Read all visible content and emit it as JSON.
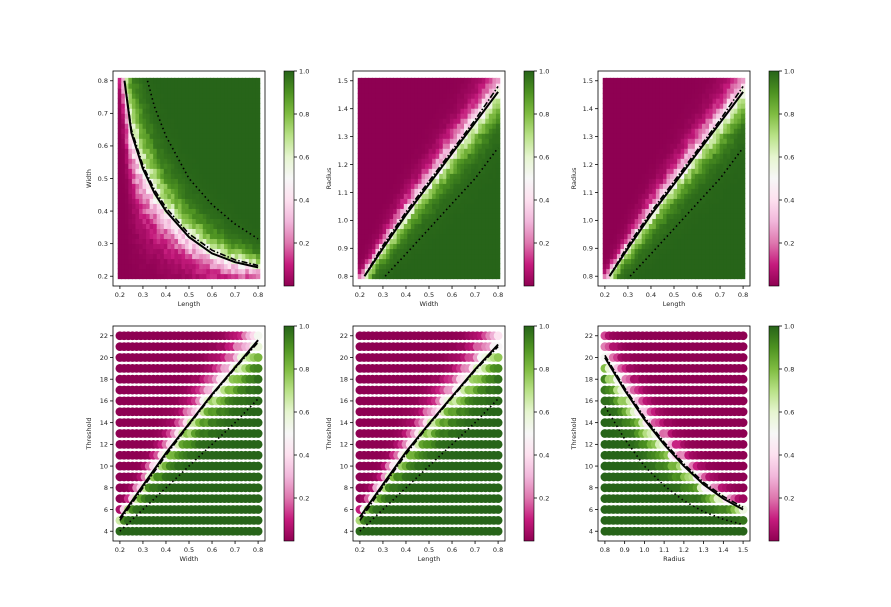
{
  "colorbar": {
    "ticks": [
      "0.2",
      "0.4",
      "0.6",
      "0.8",
      "1.0"
    ],
    "tick_values": [
      0.2,
      0.4,
      0.6,
      0.8,
      1.0
    ],
    "colors_low_to_high": [
      "#8e0152",
      "#c51b7d",
      "#de77ae",
      "#f1b6da",
      "#fde0ef",
      "#f7f7f7",
      "#e6f5d0",
      "#b8e186",
      "#7fbc41",
      "#4d9221",
      "#276419"
    ]
  },
  "chart_data": [
    {
      "type": "heatmap",
      "xlabel": "Length",
      "ylabel": "Width",
      "xlim": [
        0.17,
        0.83
      ],
      "ylim": [
        0.17,
        0.83
      ],
      "xticks": [
        0.2,
        0.3,
        0.4,
        0.5,
        0.6,
        0.7,
        0.8
      ],
      "xtick_labels": [
        "0.2",
        "0.3",
        "0.4",
        "0.5",
        "0.6",
        "0.7",
        "0.8"
      ],
      "yticks": [
        0.2,
        0.3,
        0.4,
        0.5,
        0.6,
        0.7,
        0.8
      ],
      "ytick_labels": [
        "0.2",
        "0.3",
        "0.4",
        "0.5",
        "0.6",
        "0.7",
        "0.8"
      ],
      "x_range": [
        0.2,
        0.8
      ],
      "y_range": [
        0.2,
        0.8
      ],
      "color_range": [
        0,
        1
      ],
      "boundary_solid": [
        [
          0.22,
          0.8
        ],
        [
          0.25,
          0.64
        ],
        [
          0.3,
          0.53
        ],
        [
          0.35,
          0.455
        ],
        [
          0.4,
          0.4
        ],
        [
          0.5,
          0.32
        ],
        [
          0.6,
          0.27
        ],
        [
          0.7,
          0.243
        ],
        [
          0.8,
          0.227
        ]
      ],
      "boundary_dashdot": [
        [
          0.22,
          0.8
        ],
        [
          0.25,
          0.65
        ],
        [
          0.3,
          0.54
        ],
        [
          0.35,
          0.465
        ],
        [
          0.4,
          0.41
        ],
        [
          0.5,
          0.33
        ],
        [
          0.6,
          0.28
        ],
        [
          0.7,
          0.25
        ],
        [
          0.8,
          0.233
        ]
      ],
      "boundary_dotted": [
        [
          0.32,
          0.8
        ],
        [
          0.35,
          0.72
        ],
        [
          0.4,
          0.63
        ],
        [
          0.5,
          0.5
        ],
        [
          0.6,
          0.42
        ],
        [
          0.7,
          0.36
        ],
        [
          0.8,
          0.315
        ]
      ],
      "green_side": "upper-right"
    },
    {
      "type": "heatmap",
      "xlabel": "Width",
      "ylabel": "Radius",
      "xlim": [
        0.17,
        0.83
      ],
      "ylim": [
        0.765,
        1.535
      ],
      "xticks": [
        0.2,
        0.3,
        0.4,
        0.5,
        0.6,
        0.7,
        0.8
      ],
      "xtick_labels": [
        "0.2",
        "0.3",
        "0.4",
        "0.5",
        "0.6",
        "0.7",
        "0.8"
      ],
      "yticks": [
        0.8,
        0.9,
        1.0,
        1.1,
        1.2,
        1.3,
        1.4,
        1.5
      ],
      "ytick_labels": [
        "0.8",
        "0.9",
        "1.0",
        "1.1",
        "1.2",
        "1.3",
        "1.4",
        "1.5"
      ],
      "x_range": [
        0.2,
        0.8
      ],
      "y_range": [
        0.8,
        1.5
      ],
      "color_range": [
        0,
        1
      ],
      "boundary_solid": [
        [
          0.22,
          0.8
        ],
        [
          0.3,
          0.9
        ],
        [
          0.4,
          1.02
        ],
        [
          0.5,
          1.13
        ],
        [
          0.6,
          1.24
        ],
        [
          0.7,
          1.35
        ],
        [
          0.8,
          1.46
        ]
      ],
      "boundary_dashdot": [
        [
          0.22,
          0.8
        ],
        [
          0.3,
          0.91
        ],
        [
          0.4,
          1.03
        ],
        [
          0.5,
          1.14
        ],
        [
          0.6,
          1.25
        ],
        [
          0.7,
          1.36
        ],
        [
          0.8,
          1.48
        ]
      ],
      "boundary_dotted": [
        [
          0.31,
          0.8
        ],
        [
          0.4,
          0.88
        ],
        [
          0.5,
          0.97
        ],
        [
          0.6,
          1.06
        ],
        [
          0.7,
          1.15
        ],
        [
          0.8,
          1.26
        ]
      ],
      "green_side": "lower-right"
    },
    {
      "type": "heatmap",
      "xlabel": "Length",
      "ylabel": "Radius",
      "xlim": [
        0.17,
        0.83
      ],
      "ylim": [
        0.765,
        1.535
      ],
      "xticks": [
        0.2,
        0.3,
        0.4,
        0.5,
        0.6,
        0.7,
        0.8
      ],
      "xtick_labels": [
        "0.2",
        "0.3",
        "0.4",
        "0.5",
        "0.6",
        "0.7",
        "0.8"
      ],
      "yticks": [
        0.8,
        0.9,
        1.0,
        1.1,
        1.2,
        1.3,
        1.4,
        1.5
      ],
      "ytick_labels": [
        "0.8",
        "0.9",
        "1.0",
        "1.1",
        "1.2",
        "1.3",
        "1.4",
        "1.5"
      ],
      "x_range": [
        0.2,
        0.8
      ],
      "y_range": [
        0.8,
        1.5
      ],
      "color_range": [
        0,
        1
      ],
      "boundary_solid": [
        [
          0.22,
          0.8
        ],
        [
          0.3,
          0.9
        ],
        [
          0.4,
          1.02
        ],
        [
          0.5,
          1.13
        ],
        [
          0.6,
          1.24
        ],
        [
          0.7,
          1.35
        ],
        [
          0.8,
          1.46
        ]
      ],
      "boundary_dashdot": [
        [
          0.22,
          0.8
        ],
        [
          0.3,
          0.91
        ],
        [
          0.4,
          1.03
        ],
        [
          0.5,
          1.14
        ],
        [
          0.6,
          1.25
        ],
        [
          0.7,
          1.36
        ],
        [
          0.8,
          1.48
        ]
      ],
      "boundary_dotted": [
        [
          0.31,
          0.8
        ],
        [
          0.4,
          0.88
        ],
        [
          0.5,
          0.97
        ],
        [
          0.6,
          1.06
        ],
        [
          0.7,
          1.15
        ],
        [
          0.8,
          1.26
        ]
      ],
      "green_side": "lower-right"
    },
    {
      "type": "scatter",
      "xlabel": "Width",
      "ylabel": "Threshold",
      "xlim": [
        0.17,
        0.83
      ],
      "ylim": [
        3.1,
        22.9
      ],
      "xticks": [
        0.2,
        0.3,
        0.4,
        0.5,
        0.6,
        0.7,
        0.8
      ],
      "xtick_labels": [
        "0.2",
        "0.3",
        "0.4",
        "0.5",
        "0.6",
        "0.7",
        "0.8"
      ],
      "yticks": [
        4,
        6,
        8,
        10,
        12,
        14,
        16,
        18,
        20,
        22
      ],
      "ytick_labels": [
        "4",
        "6",
        "8",
        "10",
        "12",
        "14",
        "16",
        "18",
        "20",
        "22"
      ],
      "thresholds": [
        4,
        5,
        6,
        7,
        8,
        9,
        10,
        11,
        12,
        13,
        14,
        15,
        16,
        17,
        18,
        19,
        20,
        21,
        22
      ],
      "x_range": [
        0.2,
        0.8
      ],
      "color_range": [
        0,
        1
      ],
      "boundary_solid": [
        [
          0.2,
          5.2
        ],
        [
          0.3,
          8.2
        ],
        [
          0.4,
          11.2
        ],
        [
          0.5,
          13.9
        ],
        [
          0.6,
          16.6
        ],
        [
          0.7,
          19.1
        ],
        [
          0.8,
          21.6
        ]
      ],
      "boundary_dashdot": [
        [
          0.2,
          5.0
        ],
        [
          0.3,
          8.0
        ],
        [
          0.4,
          11.0
        ],
        [
          0.5,
          13.8
        ],
        [
          0.6,
          16.5
        ],
        [
          0.7,
          19.0
        ],
        [
          0.8,
          21.4
        ]
      ],
      "boundary_dotted": [
        [
          0.2,
          4.0
        ],
        [
          0.3,
          6.0
        ],
        [
          0.4,
          8.0
        ],
        [
          0.5,
          10.0
        ],
        [
          0.6,
          12.0
        ],
        [
          0.7,
          14.0
        ],
        [
          0.8,
          16.2
        ]
      ],
      "green_side": "lower-right"
    },
    {
      "type": "scatter",
      "xlabel": "Length",
      "ylabel": "Threshold",
      "xlim": [
        0.17,
        0.83
      ],
      "ylim": [
        3.1,
        22.9
      ],
      "xticks": [
        0.2,
        0.3,
        0.4,
        0.5,
        0.6,
        0.7,
        0.8
      ],
      "xtick_labels": [
        "0.2",
        "0.3",
        "0.4",
        "0.5",
        "0.6",
        "0.7",
        "0.8"
      ],
      "yticks": [
        4,
        6,
        8,
        10,
        12,
        14,
        16,
        18,
        20,
        22
      ],
      "ytick_labels": [
        "4",
        "6",
        "8",
        "10",
        "12",
        "14",
        "16",
        "18",
        "20",
        "22"
      ],
      "thresholds": [
        4,
        5,
        6,
        7,
        8,
        9,
        10,
        11,
        12,
        13,
        14,
        15,
        16,
        17,
        18,
        19,
        20,
        21,
        22
      ],
      "x_range": [
        0.2,
        0.8
      ],
      "color_range": [
        0,
        1
      ],
      "boundary_solid": [
        [
          0.2,
          5.3
        ],
        [
          0.3,
          8.3
        ],
        [
          0.4,
          11.3
        ],
        [
          0.5,
          13.9
        ],
        [
          0.6,
          16.4
        ],
        [
          0.7,
          18.9
        ],
        [
          0.8,
          21.2
        ]
      ],
      "boundary_dashdot": [
        [
          0.2,
          5.0
        ],
        [
          0.3,
          8.1
        ],
        [
          0.4,
          11.1
        ],
        [
          0.5,
          13.8
        ],
        [
          0.6,
          16.3
        ],
        [
          0.7,
          18.8
        ],
        [
          0.8,
          21.0
        ]
      ],
      "boundary_dotted": [
        [
          0.2,
          4.0
        ],
        [
          0.3,
          6.0
        ],
        [
          0.4,
          8.0
        ],
        [
          0.5,
          10.0
        ],
        [
          0.6,
          12.0
        ],
        [
          0.7,
          14.0
        ],
        [
          0.8,
          16.2
        ]
      ],
      "green_side": "lower-right"
    },
    {
      "type": "scatter",
      "xlabel": "Radius",
      "ylabel": "Threshold",
      "xlim": [
        0.765,
        1.535
      ],
      "ylim": [
        3.1,
        22.9
      ],
      "xticks": [
        0.8,
        0.9,
        1.0,
        1.1,
        1.2,
        1.3,
        1.4,
        1.5
      ],
      "xtick_labels": [
        "0.8",
        "0.9",
        "1.0",
        "1.1",
        "1.2",
        "1.3",
        "1.4",
        "1.5"
      ],
      "yticks": [
        4,
        6,
        8,
        10,
        12,
        14,
        16,
        18,
        20,
        22
      ],
      "ytick_labels": [
        "4",
        "6",
        "8",
        "10",
        "12",
        "14",
        "16",
        "18",
        "20",
        "22"
      ],
      "thresholds": [
        4,
        5,
        6,
        7,
        8,
        9,
        10,
        11,
        12,
        13,
        14,
        15,
        16,
        17,
        18,
        19,
        20,
        21,
        22
      ],
      "x_range": [
        0.8,
        1.5
      ],
      "color_range": [
        0,
        1
      ],
      "boundary_solid": [
        [
          0.8,
          20.0
        ],
        [
          0.9,
          17.0
        ],
        [
          1.0,
          14.3
        ],
        [
          1.1,
          12.0
        ],
        [
          1.2,
          10.0
        ],
        [
          1.3,
          8.3
        ],
        [
          1.4,
          7.0
        ],
        [
          1.5,
          6.0
        ]
      ],
      "boundary_dashdot": [
        [
          0.8,
          20.2
        ],
        [
          0.9,
          17.2
        ],
        [
          1.0,
          14.5
        ],
        [
          1.1,
          12.2
        ],
        [
          1.2,
          10.2
        ],
        [
          1.3,
          8.5
        ],
        [
          1.4,
          7.2
        ],
        [
          1.5,
          6.2
        ]
      ],
      "boundary_dotted": [
        [
          0.8,
          15.5
        ],
        [
          0.9,
          12.5
        ],
        [
          1.0,
          10.0
        ],
        [
          1.1,
          8.2
        ],
        [
          1.2,
          6.8
        ],
        [
          1.3,
          5.8
        ],
        [
          1.4,
          5.1
        ],
        [
          1.5,
          4.6
        ]
      ],
      "green_side": "lower-left"
    }
  ]
}
